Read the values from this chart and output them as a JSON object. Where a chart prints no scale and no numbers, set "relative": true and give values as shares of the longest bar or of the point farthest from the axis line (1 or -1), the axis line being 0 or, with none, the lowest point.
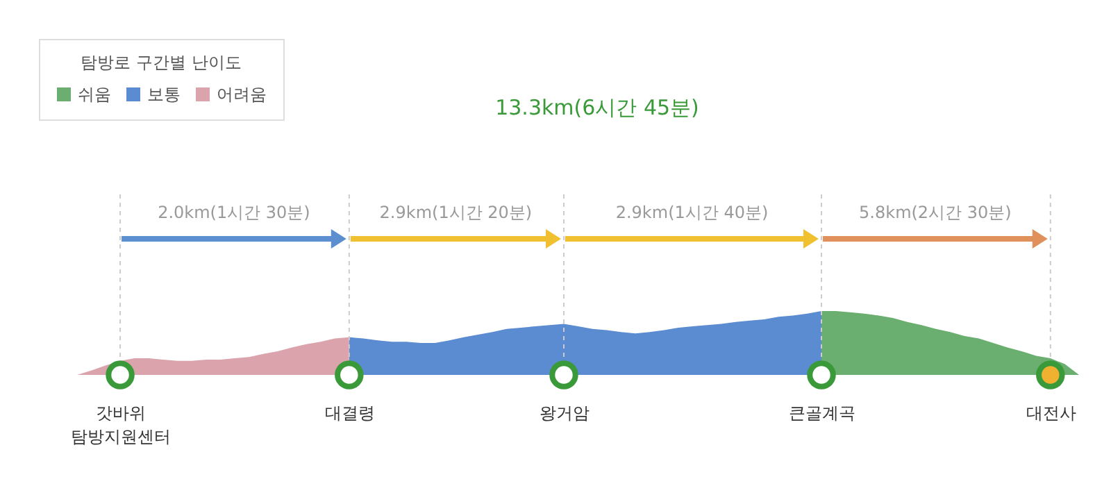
{
  "chart_data": {
    "type": "area",
    "relative": true,
    "title": "13.3km(6시간 45분)",
    "legend_title": "탐방로 구간별 난이도",
    "legend": "top left",
    "categories": [
      null,
      null,
      null,
      null,
      null,
      "갓바위 탐방지원센터",
      null,
      null,
      null,
      null,
      null,
      null,
      null,
      null,
      null,
      null,
      null,
      null,
      null,
      null,
      null,
      "대결령",
      null,
      null,
      null,
      null,
      null,
      null,
      null,
      null,
      null,
      null,
      null,
      null,
      null,
      null,
      "왕거암",
      null,
      null,
      null,
      null,
      null,
      null,
      null,
      null,
      null,
      null,
      null,
      null,
      null,
      null,
      null,
      null,
      null,
      "큰골계곡",
      null,
      null,
      null,
      null,
      null,
      null,
      null,
      null,
      null,
      null,
      null,
      null,
      null,
      null,
      null,
      "대전사",
      null,
      null
    ],
    "series": [
      {
        "name": "쉬움",
        "color": "#6aaf6f",
        "values": [
          null,
          null,
          null,
          null,
          null,
          null,
          null,
          null,
          null,
          null,
          null,
          null,
          null,
          null,
          null,
          null,
          null,
          null,
          null,
          null,
          null,
          null,
          null,
          null,
          null,
          null,
          null,
          null,
          null,
          null,
          null,
          null,
          null,
          null,
          null,
          null,
          null,
          null,
          null,
          null,
          null,
          null,
          null,
          null,
          null,
          null,
          null,
          null,
          null,
          null,
          null,
          null,
          null,
          null,
          1,
          1,
          0.98,
          0.96,
          0.93,
          0.89,
          0.83,
          0.78,
          0.72,
          0.67,
          0.61,
          0.57,
          0.5,
          0.43,
          0.37,
          0.3,
          0.26,
          0.17,
          0
        ]
      },
      {
        "name": "보통",
        "color": "#5b8bd0",
        "values": [
          null,
          null,
          null,
          null,
          null,
          null,
          null,
          null,
          null,
          null,
          null,
          null,
          null,
          null,
          null,
          null,
          null,
          null,
          null,
          null,
          null,
          0.59,
          0.57,
          0.54,
          0.52,
          0.52,
          0.5,
          0.5,
          0.54,
          0.59,
          0.63,
          0.67,
          0.72,
          0.74,
          0.76,
          0.78,
          0.8,
          0.76,
          0.72,
          0.7,
          0.67,
          0.65,
          0.67,
          0.7,
          0.74,
          0.76,
          0.78,
          0.8,
          0.83,
          0.85,
          0.87,
          0.91,
          0.93,
          0.96,
          1,
          null,
          null,
          null,
          null,
          null,
          null,
          null,
          null,
          null,
          null,
          null,
          null,
          null,
          null,
          null,
          null,
          null,
          null
        ]
      },
      {
        "name": "어려움",
        "color": "#dba3ab",
        "values": [
          0,
          0,
          0,
          0.07,
          0.15,
          0.22,
          0.26,
          0.26,
          0.24,
          0.22,
          0.22,
          0.24,
          0.24,
          0.26,
          0.28,
          0.33,
          0.37,
          0.43,
          0.48,
          0.52,
          0.57,
          0.59,
          null,
          null,
          null,
          null,
          null,
          null,
          null,
          null,
          null,
          null,
          null,
          null,
          null,
          null,
          null,
          null,
          null,
          null,
          null,
          null,
          null,
          null,
          null,
          null,
          null,
          null,
          null,
          null,
          null,
          null,
          null,
          null,
          null,
          null,
          null,
          null,
          null,
          null,
          null,
          null,
          null,
          null,
          null,
          null,
          null,
          null,
          null,
          null,
          null,
          null,
          null
        ]
      },
      {
        "type": "scatter",
        "marker": "circle",
        "color": "#3a9a3a",
        "x": [
          "갓바위 탐방지원센터",
          "대결령",
          "왕거암",
          "큰골계곡",
          "대전사"
        ],
        "values": [
          0,
          0,
          0,
          0,
          0
        ],
        "colors": [
          "#ffffff",
          "#ffffff",
          "#ffffff",
          "#ffffff",
          "#f0b030"
        ]
      }
    ],
    "ref_lines": [
      {
        "axis": "x",
        "value": "갓바위 탐방지원센터",
        "color": "#cccccc",
        "line_style": "dashed"
      },
      {
        "axis": "x",
        "value": "대결령",
        "color": "#cccccc",
        "line_style": "dashed"
      },
      {
        "axis": "x",
        "value": "왕거암",
        "color": "#cccccc",
        "line_style": "dashed"
      },
      {
        "axis": "x",
        "value": "큰골계곡",
        "color": "#cccccc",
        "line_style": "dashed"
      },
      {
        "axis": "x",
        "value": "대전사",
        "color": "#cccccc",
        "line_style": "dashed"
      }
    ],
    "annotations": [
      "2.0km(1시간 30분)",
      "2.9km(1시간 20분)",
      "2.9km(1시간 40분)",
      "5.8km(2시간 30분)"
    ]
  }
}
